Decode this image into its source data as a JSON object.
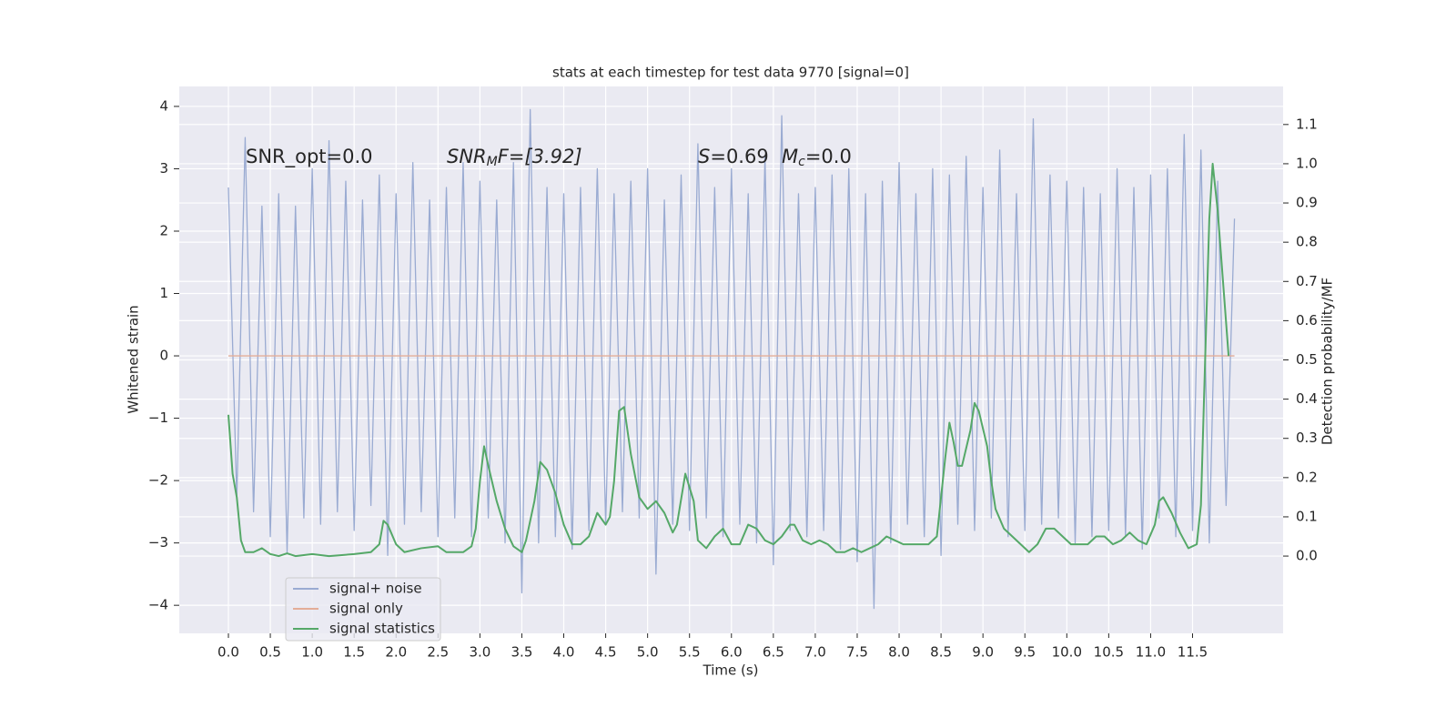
{
  "chart_data": {
    "type": "line",
    "title": "stats at each timestep for test data 9770 [signal=0]",
    "xlabel": "Time (s)",
    "ylabel": "Whitened strain",
    "y2label": "Detection probability/MF",
    "annotations": [
      {
        "base": "SNR_opt=0.0"
      },
      {
        "base": "SNR",
        "sub": "M",
        "tail": "F=[3.92]"
      },
      {
        "base": "S",
        "tail": "=0.69"
      },
      {
        "base": "M",
        "sub": "c",
        "tail": "=0.0"
      }
    ],
    "xlim": [
      -0.586,
      12.58
    ],
    "ylim": [
      -4.45,
      4.32
    ],
    "y2lim": [
      -0.197,
      1.197
    ],
    "xticks": [
      {
        "value": 0,
        "label": "0.0"
      },
      0.5,
      {
        "value": 1,
        "label": "1.0"
      },
      1.5,
      {
        "value": 2,
        "label": "2.0"
      },
      2.5,
      {
        "value": 3,
        "label": "3.0"
      },
      3.5,
      {
        "value": 4,
        "label": "4.0"
      },
      4.5,
      {
        "value": 5,
        "label": "5.0"
      },
      5.5,
      {
        "value": 6,
        "label": "6.0"
      },
      6.5,
      {
        "value": 7,
        "label": "7.0"
      },
      7.5,
      {
        "value": 8,
        "label": "8.0"
      },
      8.5,
      {
        "value": 9,
        "label": "9.0"
      },
      9.5,
      {
        "value": 10,
        "label": "10.0"
      },
      10.5,
      {
        "value": 11,
        "label": "11.0"
      },
      11.5
    ],
    "yticks": [
      {
        "value": -4,
        "label": "−4"
      },
      {
        "value": -3,
        "label": "−3"
      },
      {
        "value": -2,
        "label": "−2"
      },
      {
        "value": -1,
        "label": "−1"
      },
      0,
      1,
      2,
      3,
      4
    ],
    "y2ticks": [
      {
        "value": 0,
        "label": "0.0"
      },
      0.1,
      0.2,
      0.3,
      0.4,
      0.5,
      0.6,
      0.7,
      0.8,
      0.9,
      {
        "value": 1,
        "label": "1.0"
      },
      1.1
    ],
    "grid": true,
    "legend": "lower left",
    "series": [
      {
        "name": "signal+ noise",
        "color": "#9aabd2",
        "x": [
          0,
          0.1,
          0.2,
          0.3,
          0.4,
          0.5,
          0.6,
          0.7,
          0.8,
          0.9,
          1,
          1.1,
          1.2,
          1.3,
          1.4,
          1.5,
          1.6,
          1.7,
          1.8,
          1.9,
          2,
          2.1,
          2.2,
          2.3,
          2.4,
          2.5,
          2.6,
          2.7,
          2.8,
          2.9,
          3,
          3.1,
          3.2,
          3.3,
          3.4,
          3.5,
          3.6,
          3.7,
          3.8,
          3.9,
          4,
          4.1,
          4.2,
          4.3,
          4.4,
          4.5,
          4.6,
          4.7,
          4.8,
          4.9,
          5,
          5.1,
          5.2,
          5.3,
          5.4,
          5.5,
          5.6,
          5.7,
          5.8,
          5.9,
          6,
          6.1,
          6.2,
          6.3,
          6.4,
          6.5,
          6.6,
          6.7,
          6.8,
          6.9,
          7,
          7.1,
          7.2,
          7.3,
          7.4,
          7.5,
          7.6,
          7.7,
          7.8,
          7.9,
          8,
          8.1,
          8.2,
          8.3,
          8.4,
          8.5,
          8.6,
          8.7,
          8.8,
          8.9,
          9,
          9.1,
          9.2,
          9.3,
          9.4,
          9.5,
          9.6,
          9.7,
          9.8,
          9.9,
          10,
          10.1,
          10.2,
          10.3,
          10.4,
          10.5,
          10.6,
          10.7,
          10.8,
          10.9,
          11,
          11.1,
          11.2,
          11.3,
          11.4,
          11.5,
          11.6,
          11.7,
          11.8,
          11.9,
          12
        ],
        "values": [
          2.7,
          -2.3,
          3.5,
          -2.5,
          2.4,
          -2.9,
          2.6,
          -3.15,
          2.4,
          -2.6,
          3.0,
          -2.7,
          3.45,
          -2.5,
          2.8,
          -2.8,
          2.5,
          -2.4,
          2.9,
          -3.2,
          2.6,
          -2.7,
          3.1,
          -2.5,
          2.5,
          -2.9,
          2.7,
          -2.6,
          3.1,
          -2.9,
          2.8,
          -2.6,
          2.5,
          -3.0,
          3.1,
          -3.8,
          3.95,
          -3.0,
          2.7,
          -2.9,
          2.6,
          -3.1,
          2.7,
          -2.8,
          3.0,
          -2.7,
          2.6,
          -2.5,
          2.8,
          -2.6,
          3.0,
          -3.5,
          2.5,
          -2.7,
          2.9,
          -2.8,
          3.4,
          -2.6,
          2.7,
          -2.9,
          3.0,
          -2.7,
          2.6,
          -3.0,
          3.2,
          -3.35,
          3.85,
          -2.8,
          2.6,
          -2.9,
          2.7,
          -2.8,
          2.9,
          -3.1,
          3.0,
          -3.3,
          2.6,
          -4.05,
          2.8,
          -3.0,
          3.1,
          -2.7,
          2.6,
          -2.9,
          3.0,
          -3.2,
          2.9,
          -2.7,
          3.2,
          -2.8,
          2.7,
          -2.6,
          3.3,
          -2.9,
          2.6,
          -2.8,
          3.8,
          -2.7,
          2.9,
          -2.6,
          2.8,
          -3.0,
          2.7,
          -2.9,
          2.6,
          -2.8,
          3.0,
          -2.9,
          2.7,
          -3.1,
          2.9,
          -2.6,
          3.0,
          -2.9,
          3.55,
          -2.8,
          3.3,
          -3.0,
          2.8,
          -2.4,
          2.2
        ]
      },
      {
        "name": "signal only",
        "color": "#e3ad98",
        "x": [
          0,
          12
        ],
        "values": [
          0,
          0
        ]
      },
      {
        "name": "signal statistics",
        "color": "#55a868",
        "axis": "y2",
        "x": [
          0,
          0.05,
          0.1,
          0.15,
          0.2,
          0.3,
          0.4,
          0.5,
          0.6,
          0.7,
          0.8,
          1.0,
          1.2,
          1.5,
          1.7,
          1.8,
          1.85,
          1.9,
          2.0,
          2.1,
          2.3,
          2.5,
          2.6,
          2.8,
          2.9,
          2.95,
          3.0,
          3.05,
          3.1,
          3.2,
          3.3,
          3.4,
          3.5,
          3.55,
          3.65,
          3.72,
          3.8,
          3.9,
          4.0,
          4.1,
          4.2,
          4.3,
          4.4,
          4.5,
          4.55,
          4.6,
          4.66,
          4.72,
          4.8,
          4.9,
          5.0,
          5.1,
          5.2,
          5.3,
          5.35,
          5.45,
          5.55,
          5.6,
          5.7,
          5.8,
          5.9,
          6.0,
          6.1,
          6.2,
          6.3,
          6.4,
          6.5,
          6.6,
          6.7,
          6.75,
          6.85,
          6.95,
          7.05,
          7.15,
          7.25,
          7.35,
          7.45,
          7.55,
          7.65,
          7.75,
          7.85,
          7.95,
          8.05,
          8.15,
          8.25,
          8.35,
          8.45,
          8.55,
          8.6,
          8.65,
          8.7,
          8.75,
          8.85,
          8.9,
          8.95,
          9.05,
          9.1,
          9.15,
          9.25,
          9.35,
          9.45,
          9.55,
          9.65,
          9.75,
          9.85,
          9.95,
          10.05,
          10.15,
          10.25,
          10.35,
          10.45,
          10.55,
          10.65,
          10.75,
          10.85,
          10.95,
          11.05,
          11.1,
          11.15,
          11.25,
          11.35,
          11.45,
          11.55,
          11.6,
          11.65,
          11.7,
          11.74,
          11.8,
          11.93
        ],
        "values": [
          0.36,
          0.21,
          0.15,
          0.04,
          0.01,
          0.01,
          0.02,
          0.005,
          0,
          0.007,
          0,
          0.005,
          0,
          0.005,
          0.01,
          0.03,
          0.09,
          0.08,
          0.03,
          0.01,
          0.02,
          0.025,
          0.01,
          0.01,
          0.025,
          0.07,
          0.19,
          0.28,
          0.23,
          0.14,
          0.07,
          0.025,
          0.01,
          0.04,
          0.14,
          0.24,
          0.22,
          0.16,
          0.08,
          0.03,
          0.03,
          0.05,
          0.11,
          0.08,
          0.1,
          0.19,
          0.37,
          0.38,
          0.26,
          0.15,
          0.12,
          0.14,
          0.11,
          0.06,
          0.08,
          0.21,
          0.14,
          0.04,
          0.02,
          0.05,
          0.07,
          0.03,
          0.03,
          0.08,
          0.07,
          0.04,
          0.03,
          0.05,
          0.08,
          0.08,
          0.04,
          0.03,
          0.04,
          0.03,
          0.01,
          0.01,
          0.02,
          0.01,
          0.02,
          0.03,
          0.05,
          0.04,
          0.03,
          0.03,
          0.03,
          0.03,
          0.05,
          0.25,
          0.34,
          0.29,
          0.23,
          0.23,
          0.32,
          0.39,
          0.37,
          0.28,
          0.19,
          0.12,
          0.07,
          0.05,
          0.03,
          0.01,
          0.03,
          0.07,
          0.07,
          0.05,
          0.03,
          0.03,
          0.03,
          0.05,
          0.05,
          0.03,
          0.04,
          0.06,
          0.04,
          0.03,
          0.08,
          0.14,
          0.15,
          0.11,
          0.06,
          0.02,
          0.03,
          0.13,
          0.5,
          0.86,
          1.0,
          0.88,
          0.51
        ]
      }
    ]
  }
}
